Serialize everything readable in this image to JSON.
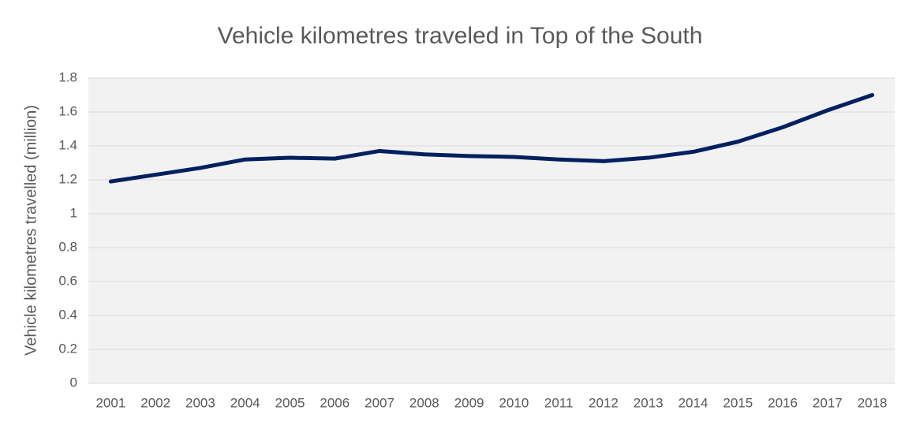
{
  "chart_data": {
    "type": "line",
    "title": "Vehicle kilometres traveled in Top of the South",
    "y_label": "Vehicle kilometres travelled (million)",
    "categories": [
      "2001",
      "2002",
      "2003",
      "2004",
      "2005",
      "2006",
      "2007",
      "2008",
      "2009",
      "2010",
      "2011",
      "2012",
      "2013",
      "2014",
      "2015",
      "2016",
      "2017",
      "2018"
    ],
    "values": [
      1.19,
      1.23,
      1.27,
      1.32,
      1.33,
      1.325,
      1.37,
      1.35,
      1.34,
      1.335,
      1.32,
      1.31,
      1.33,
      1.365,
      1.425,
      1.51,
      1.61,
      1.7
    ],
    "color": "#002060",
    "ylim": [
      0,
      1.8
    ],
    "yticks": [
      0,
      0.2,
      0.4,
      0.6,
      0.8,
      1,
      1.2,
      1.4,
      1.6,
      1.8
    ],
    "grid": true
  }
}
